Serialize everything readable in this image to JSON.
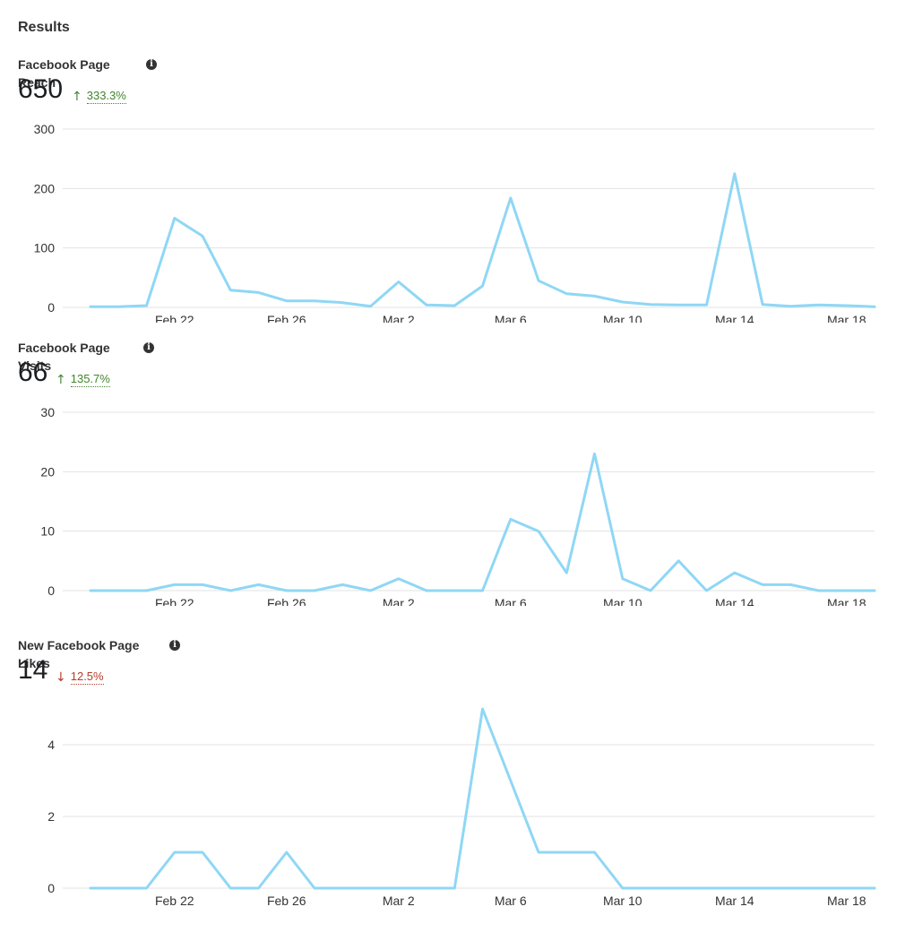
{
  "page": {
    "title": "Results"
  },
  "colors": {
    "line": "#8fd7f5",
    "grid": "#e3e3e3",
    "up": "#42852d",
    "down": "#b43c2a"
  },
  "chart_data": [
    {
      "type": "line",
      "title": "Facebook Page Reach",
      "total": "650",
      "change": "333.3%",
      "direction": "up",
      "x_ticks": [
        "Feb 22",
        "Feb 26",
        "Mar 2",
        "Mar 6",
        "Mar 10",
        "Mar 14",
        "Mar 18"
      ],
      "x": [
        "Feb 19",
        "Feb 20",
        "Feb 21",
        "Feb 22",
        "Feb 23",
        "Feb 24",
        "Feb 25",
        "Feb 26",
        "Feb 27",
        "Feb 28",
        "Mar 1",
        "Mar 2",
        "Mar 3",
        "Mar 4",
        "Mar 5",
        "Mar 6",
        "Mar 7",
        "Mar 8",
        "Mar 9",
        "Mar 10",
        "Mar 11",
        "Mar 12",
        "Mar 13",
        "Mar 14",
        "Mar 15",
        "Mar 16",
        "Mar 17",
        "Mar 18",
        "Mar 19"
      ],
      "y_ticks": [
        0,
        100,
        200,
        300
      ],
      "ylim": [
        0,
        300
      ],
      "values": [
        1,
        1,
        3,
        150,
        120,
        29,
        25,
        11,
        11,
        8,
        2,
        43,
        4,
        3,
        36,
        184,
        45,
        23,
        19,
        9,
        5,
        4,
        4,
        225,
        5,
        2,
        4,
        3,
        1
      ]
    },
    {
      "type": "line",
      "title": "Facebook Page Visits",
      "total": "66",
      "change": "135.7%",
      "direction": "up",
      "x_ticks": [
        "Feb 22",
        "Feb 26",
        "Mar 2",
        "Mar 6",
        "Mar 10",
        "Mar 14",
        "Mar 18"
      ],
      "x": [
        "Feb 19",
        "Feb 20",
        "Feb 21",
        "Feb 22",
        "Feb 23",
        "Feb 24",
        "Feb 25",
        "Feb 26",
        "Feb 27",
        "Feb 28",
        "Mar 1",
        "Mar 2",
        "Mar 3",
        "Mar 4",
        "Mar 5",
        "Mar 6",
        "Mar 7",
        "Mar 8",
        "Mar 9",
        "Mar 10",
        "Mar 11",
        "Mar 12",
        "Mar 13",
        "Mar 14",
        "Mar 15",
        "Mar 16",
        "Mar 17",
        "Mar 18",
        "Mar 19"
      ],
      "y_ticks": [
        0,
        10,
        20,
        30
      ],
      "ylim": [
        0,
        30
      ],
      "values": [
        0,
        0,
        0,
        1,
        1,
        0,
        1,
        0,
        0,
        1,
        0,
        2,
        0,
        0,
        0,
        12,
        10,
        3,
        23,
        2,
        0,
        5,
        0,
        3,
        1,
        1,
        0,
        0,
        0
      ]
    },
    {
      "type": "line",
      "title": "New Facebook Page Likes",
      "total": "14",
      "change": "12.5%",
      "direction": "down",
      "x_ticks": [
        "Feb 22",
        "Feb 26",
        "Mar 2",
        "Mar 6",
        "Mar 10",
        "Mar 14",
        "Mar 18"
      ],
      "x": [
        "Feb 19",
        "Feb 20",
        "Feb 21",
        "Feb 22",
        "Feb 23",
        "Feb 24",
        "Feb 25",
        "Feb 26",
        "Feb 27",
        "Feb 28",
        "Mar 1",
        "Mar 2",
        "Mar 3",
        "Mar 4",
        "Mar 5",
        "Mar 6",
        "Mar 7",
        "Mar 8",
        "Mar 9",
        "Mar 10",
        "Mar 11",
        "Mar 12",
        "Mar 13",
        "Mar 14",
        "Mar 15",
        "Mar 16",
        "Mar 17",
        "Mar 18",
        "Mar 19"
      ],
      "y_ticks": [
        0,
        2,
        4
      ],
      "ylim": [
        0,
        4.8
      ],
      "values": [
        0,
        0,
        0,
        1,
        1,
        0,
        0,
        1,
        0,
        0,
        0,
        0,
        0,
        0,
        5,
        3,
        1,
        1,
        1,
        0,
        0,
        0,
        0,
        0,
        0,
        0,
        0,
        0,
        0
      ]
    }
  ],
  "icons": {
    "info": "info-icon",
    "up": "arrow-up-icon",
    "down": "arrow-down-icon"
  },
  "info_glyph": "i",
  "arrow_up": "↑",
  "arrow_down": "↓"
}
